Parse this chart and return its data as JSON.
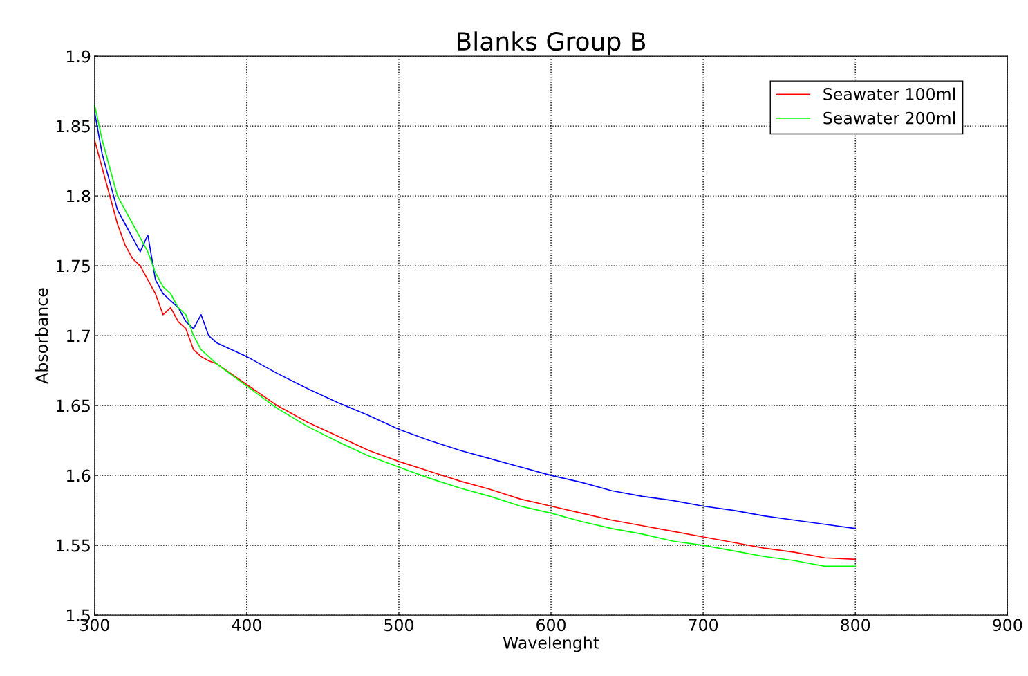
{
  "chart_data": {
    "type": "line",
    "title": "Blanks Group B",
    "xlabel": "Wavelenght",
    "ylabel": "Absorbance",
    "xlim": [
      300,
      900
    ],
    "xticks": [
      300,
      400,
      500,
      600,
      700,
      800,
      900
    ],
    "ylim": [
      1.5,
      1.9
    ],
    "yticks": [
      1.5,
      1.55,
      1.6,
      1.65,
      1.7,
      1.75,
      1.8,
      1.85,
      1.9
    ],
    "grid": true,
    "legend": "top right",
    "line_style": "solid",
    "marker": "none",
    "x": [
      300,
      305,
      310,
      315,
      320,
      325,
      330,
      335,
      340,
      345,
      350,
      355,
      360,
      365,
      370,
      375,
      380,
      400,
      420,
      440,
      460,
      480,
      500,
      520,
      540,
      560,
      580,
      600,
      620,
      640,
      660,
      680,
      700,
      720,
      740,
      760,
      780,
      800
    ],
    "series": [
      {
        "color": "#0000ff",
        "values": [
          1.86,
          1.83,
          1.81,
          1.79,
          1.78,
          1.77,
          1.76,
          1.772,
          1.74,
          1.73,
          1.725,
          1.72,
          1.71,
          1.705,
          1.715,
          1.7,
          1.695,
          1.685,
          1.673,
          1.662,
          1.652,
          1.643,
          1.633,
          1.625,
          1.618,
          1.612,
          1.606,
          1.6,
          1.595,
          1.589,
          1.585,
          1.582,
          1.578,
          1.575,
          1.571,
          1.568,
          1.565,
          1.562
        ]
      },
      {
        "name": "Seawater 100ml",
        "color": "#ff0000",
        "values": [
          1.84,
          1.82,
          1.8,
          1.78,
          1.765,
          1.755,
          1.75,
          1.74,
          1.73,
          1.715,
          1.72,
          1.71,
          1.705,
          1.69,
          1.685,
          1.682,
          1.68,
          1.665,
          1.65,
          1.638,
          1.628,
          1.618,
          1.61,
          1.603,
          1.596,
          1.59,
          1.583,
          1.578,
          1.573,
          1.568,
          1.564,
          1.56,
          1.556,
          1.552,
          1.548,
          1.545,
          1.541,
          1.54
        ]
      },
      {
        "name": "Seawater 200ml",
        "color": "#00ff00",
        "values": [
          1.865,
          1.84,
          1.82,
          1.8,
          1.79,
          1.78,
          1.77,
          1.76,
          1.745,
          1.735,
          1.73,
          1.72,
          1.715,
          1.7,
          1.69,
          1.685,
          1.68,
          1.664,
          1.648,
          1.635,
          1.624,
          1.614,
          1.606,
          1.598,
          1.591,
          1.585,
          1.578,
          1.573,
          1.567,
          1.562,
          1.558,
          1.553,
          1.55,
          1.546,
          1.542,
          1.539,
          1.535,
          1.535
        ]
      }
    ]
  }
}
